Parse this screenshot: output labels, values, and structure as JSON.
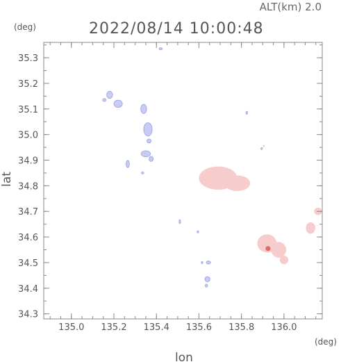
{
  "header": {
    "altitude": "ALT(km) 2.0",
    "datetime": "2022/08/14 10:00:48"
  },
  "axes": {
    "x_unit": "(deg)",
    "y_unit": "(deg)",
    "x_title": "lon",
    "y_title": "lat",
    "x_range": [
      134.87,
      136.18
    ],
    "y_range": [
      34.28,
      35.36
    ],
    "x_ticks": [
      135.0,
      135.2,
      135.4,
      135.6,
      135.8,
      136.0
    ],
    "x_tick_labels": [
      "135.0",
      "135.2",
      "135.4",
      "135.6",
      "135.8",
      "136.0"
    ],
    "y_ticks": [
      34.3,
      34.4,
      34.5,
      34.6,
      34.7,
      34.8,
      34.9,
      35.0,
      35.1,
      35.2,
      35.3
    ],
    "y_tick_labels": [
      "34.3",
      "34.4",
      "34.5",
      "34.6",
      "34.7",
      "34.8",
      "34.9",
      "35.0",
      "35.1",
      "35.2",
      "35.3"
    ]
  },
  "colors": {
    "approaching": "#c8ccf2",
    "approaching_edge": "#7a82e0",
    "receding": "#f7cccc",
    "receding_strong": "#e06a6a",
    "frame": "#888888"
  },
  "echoes": [
    {
      "kind": "approaching",
      "lon": 135.42,
      "lat": 35.335,
      "rlon": 0.008,
      "rlat": 0.004
    },
    {
      "kind": "approaching",
      "lon": 135.18,
      "lat": 35.155,
      "rlon": 0.014,
      "rlat": 0.014
    },
    {
      "kind": "approaching",
      "lon": 135.22,
      "lat": 35.12,
      "rlon": 0.02,
      "rlat": 0.014
    },
    {
      "kind": "approaching",
      "lon": 135.155,
      "lat": 35.135,
      "rlon": 0.008,
      "rlat": 0.006
    },
    {
      "kind": "approaching",
      "lon": 135.34,
      "lat": 35.1,
      "rlon": 0.014,
      "rlat": 0.018
    },
    {
      "kind": "approaching",
      "lon": 135.36,
      "lat": 35.02,
      "rlon": 0.02,
      "rlat": 0.026
    },
    {
      "kind": "approaching",
      "lon": 135.365,
      "lat": 34.975,
      "rlon": 0.01,
      "rlat": 0.008
    },
    {
      "kind": "approaching",
      "lon": 135.35,
      "lat": 34.925,
      "rlon": 0.022,
      "rlat": 0.012
    },
    {
      "kind": "approaching",
      "lon": 135.375,
      "lat": 34.905,
      "rlon": 0.01,
      "rlat": 0.01
    },
    {
      "kind": "approaching",
      "lon": 135.265,
      "lat": 34.885,
      "rlon": 0.008,
      "rlat": 0.014
    },
    {
      "kind": "approaching",
      "lon": 135.335,
      "lat": 34.85,
      "rlon": 0.006,
      "rlat": 0.004
    },
    {
      "kind": "approaching",
      "lon": 135.51,
      "lat": 34.66,
      "rlon": 0.004,
      "rlat": 0.008
    },
    {
      "kind": "approaching",
      "lon": 135.595,
      "lat": 34.62,
      "rlon": 0.004,
      "rlat": 0.004
    },
    {
      "kind": "approaching",
      "lon": 135.645,
      "lat": 34.5,
      "rlon": 0.01,
      "rlat": 0.006
    },
    {
      "kind": "approaching",
      "lon": 135.615,
      "lat": 34.5,
      "rlon": 0.004,
      "rlat": 0.004
    },
    {
      "kind": "approaching",
      "lon": 135.64,
      "lat": 34.435,
      "rlon": 0.012,
      "rlat": 0.01
    },
    {
      "kind": "approaching",
      "lon": 135.635,
      "lat": 34.41,
      "rlon": 0.006,
      "rlat": 0.006
    },
    {
      "kind": "approaching",
      "lon": 135.825,
      "lat": 35.085,
      "rlon": 0.004,
      "rlat": 0.006
    },
    {
      "kind": "approaching",
      "lon": 135.895,
      "lat": 34.945,
      "rlon": 0.004,
      "rlat": 0.004
    },
    {
      "kind": "receding",
      "lon": 135.69,
      "lat": 34.83,
      "rlon": 0.09,
      "rlat": 0.045
    },
    {
      "kind": "receding",
      "lon": 135.78,
      "lat": 34.81,
      "rlon": 0.06,
      "rlat": 0.03
    },
    {
      "kind": "receding",
      "lon": 135.92,
      "lat": 34.575,
      "rlon": 0.045,
      "rlat": 0.035
    },
    {
      "kind": "receding",
      "lon": 135.975,
      "lat": 34.55,
      "rlon": 0.035,
      "rlat": 0.03
    },
    {
      "kind": "receding",
      "lon": 136.0,
      "lat": 34.51,
      "rlon": 0.02,
      "rlat": 0.016
    },
    {
      "kind": "receding_strong",
      "lon": 135.925,
      "lat": 34.555,
      "rlon": 0.012,
      "rlat": 0.01
    },
    {
      "kind": "receding",
      "lon": 136.125,
      "lat": 34.635,
      "rlon": 0.022,
      "rlat": 0.022
    },
    {
      "kind": "receding",
      "lon": 136.16,
      "lat": 34.7,
      "rlon": 0.018,
      "rlat": 0.014
    },
    {
      "kind": "receding",
      "lon": 135.905,
      "lat": 34.955,
      "rlon": 0.004,
      "rlat": 0.004
    }
  ]
}
